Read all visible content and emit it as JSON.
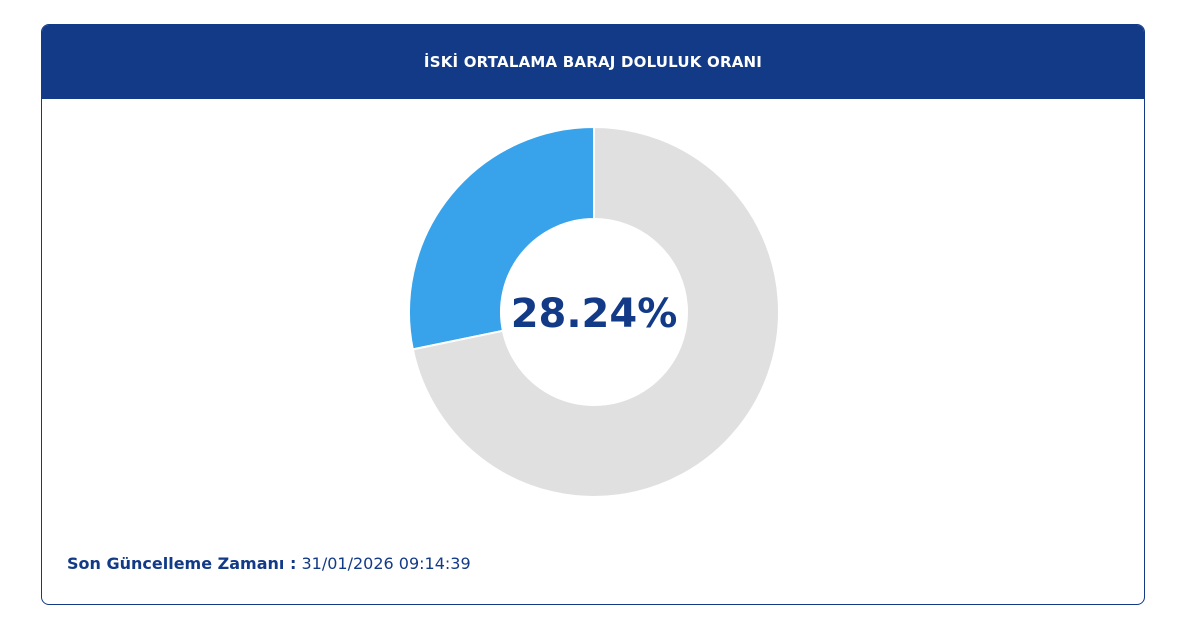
{
  "chart_data": {
    "type": "donut",
    "title": "İSKİ ORTALAMA BARAJ DOLULUK ORANI",
    "values": [
      28.24,
      71.76
    ],
    "value_labels": [
      "28.24%",
      null
    ],
    "colors": [
      "#38a2ea",
      "#e0e0e0"
    ],
    "direction": "counterclockwise"
  },
  "footer": {
    "label": "Son Güncelleme Zamanı :",
    "value": "31/01/2026 09:14:39"
  }
}
